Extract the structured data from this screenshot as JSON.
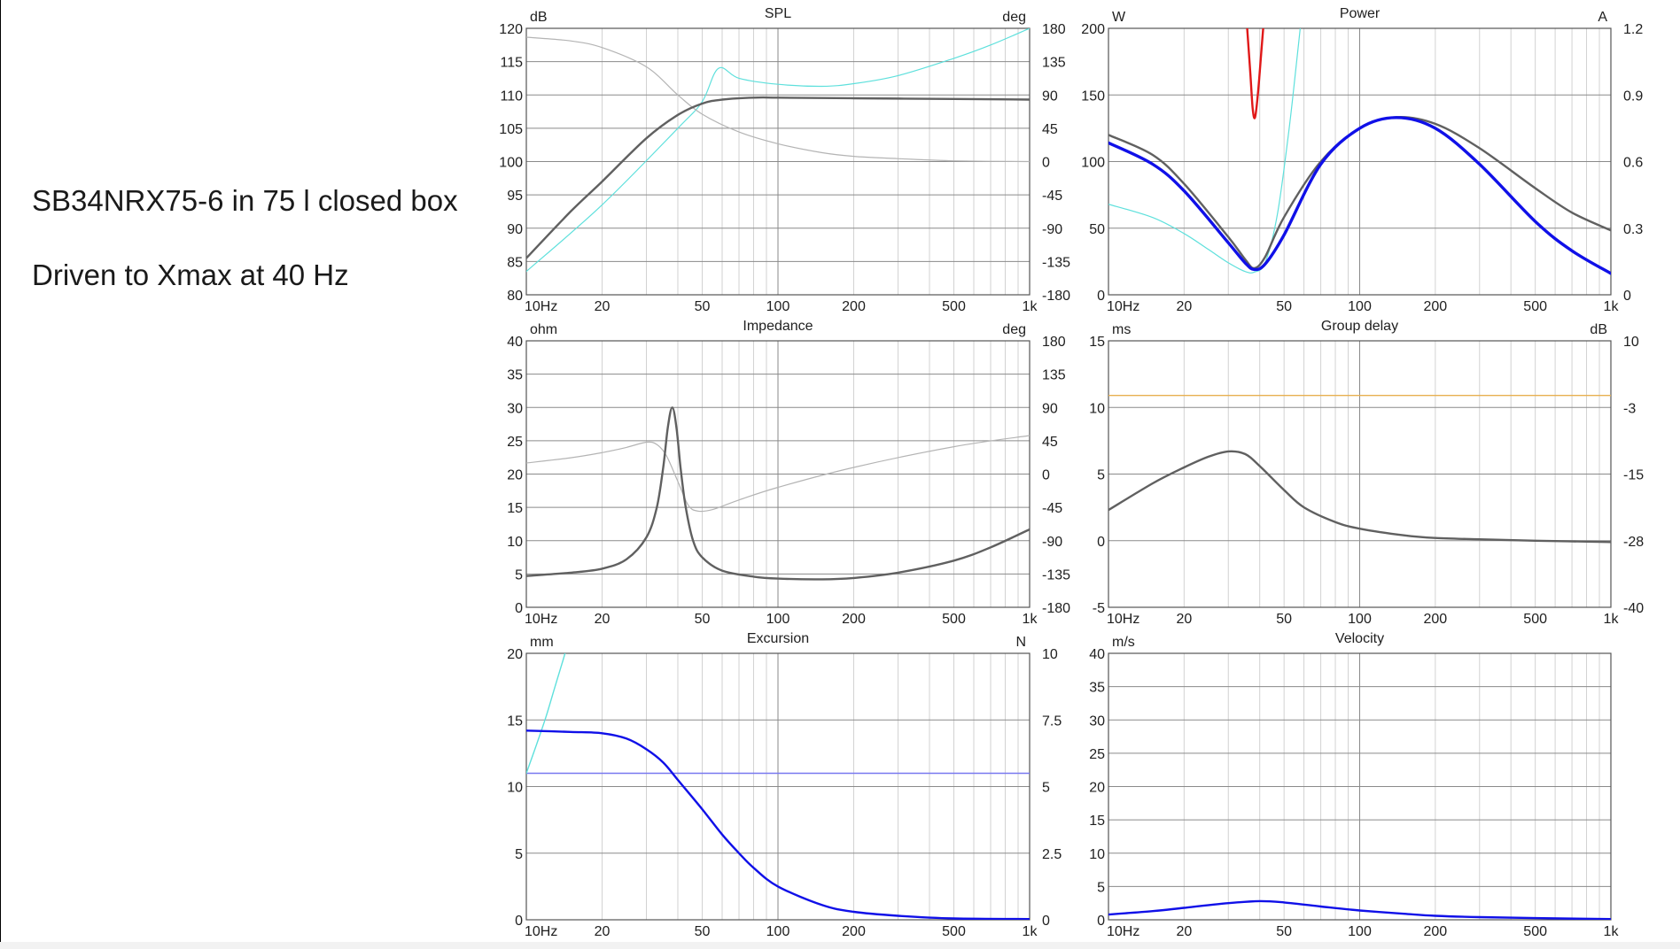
{
  "slide": {
    "caption1": "SB34NRX75-6 in 75 l closed box",
    "caption2": "Driven to Xmax at 40 Hz"
  },
  "colors": {
    "grid_major": "#8a8a8a",
    "grid_minor": "#d2d2d2",
    "dark_gray": "#606060",
    "light_gray": "#b4b4b4",
    "cyan": "#5ee0dc",
    "blue": "#1010e8",
    "red": "#e01818",
    "purple": "#7878f0",
    "orange": "#e8b050"
  },
  "chart_data": [
    {
      "id": "spl",
      "type": "line",
      "title": "SPL",
      "xscale": "log",
      "xlim": [
        10,
        1000
      ],
      "x_ticks": [
        "10Hz",
        "20",
        "50",
        "100",
        "200",
        "500",
        "1k"
      ],
      "ylabel": "dB",
      "ylim": [
        80,
        120
      ],
      "y_ticks": [
        "80",
        "85",
        "90",
        "95",
        "100",
        "105",
        "110",
        "115",
        "120"
      ],
      "y2label": "deg",
      "y2lim": [
        -180,
        180
      ],
      "y2_ticks": [
        "-180",
        "-135",
        "-90",
        "-45",
        "0",
        "45",
        "90",
        "135",
        "180"
      ],
      "grid": true,
      "series": [
        {
          "color": "cyan",
          "width": 1.2,
          "axis": "y",
          "points": [
            [
              10,
              83.5
            ],
            [
              20,
              93.5
            ],
            [
              40,
              105
            ],
            [
              50,
              109
            ],
            [
              58,
              114
            ],
            [
              70,
              112.5
            ],
            [
              100,
              111.6
            ],
            [
              150,
              111.3
            ],
            [
              200,
              111.7
            ],
            [
              300,
              112.9
            ],
            [
              500,
              115.5
            ],
            [
              700,
              117.5
            ],
            [
              1000,
              120
            ]
          ]
        },
        {
          "color": "light_gray",
          "width": 1.2,
          "axis": "y2",
          "points": [
            [
              10,
              168
            ],
            [
              15,
              163
            ],
            [
              20,
              154
            ],
            [
              30,
              128
            ],
            [
              40,
              90
            ],
            [
              50,
              64
            ],
            [
              70,
              40
            ],
            [
              100,
              24
            ],
            [
              150,
              12
            ],
            [
              200,
              7
            ],
            [
              300,
              4
            ],
            [
              500,
              1
            ],
            [
              1000,
              0
            ]
          ]
        },
        {
          "color": "dark_gray",
          "width": 2.4,
          "axis": "y",
          "points": [
            [
              10,
              85.5
            ],
            [
              15,
              92.5
            ],
            [
              20,
              97
            ],
            [
              30,
              103.5
            ],
            [
              40,
              107
            ],
            [
              50,
              108.7
            ],
            [
              60,
              109.3
            ],
            [
              80,
              109.6
            ],
            [
              100,
              109.6
            ],
            [
              200,
              109.5
            ],
            [
              500,
              109.4
            ],
            [
              1000,
              109.3
            ]
          ]
        }
      ]
    },
    {
      "id": "power",
      "type": "line",
      "title": "Power",
      "xscale": "log",
      "xlim": [
        10,
        1000
      ],
      "x_ticks": [
        "10Hz",
        "20",
        "50",
        "100",
        "200",
        "500",
        "1k"
      ],
      "ylabel": "W",
      "ylim": [
        0,
        200
      ],
      "y_ticks": [
        "0",
        "50",
        "100",
        "150",
        "200"
      ],
      "y2label": "A",
      "y2lim": [
        0,
        1.2
      ],
      "y2_ticks": [
        "0",
        "0.3",
        "0.6",
        "0.9",
        "1.2"
      ],
      "grid": true,
      "series": [
        {
          "color": "red",
          "width": 2.4,
          "axis": "y",
          "points": [
            [
              35.5,
              205
            ],
            [
              36.6,
              170
            ],
            [
              37.5,
              140
            ],
            [
              38.3,
              133
            ],
            [
              39.3,
              150
            ],
            [
              40.5,
              180
            ],
            [
              41.5,
              205
            ]
          ]
        },
        {
          "color": "cyan",
          "width": 1.2,
          "axis": "y",
          "points": [
            [
              10,
              68
            ],
            [
              15,
              58
            ],
            [
              20,
              46
            ],
            [
              25,
              34
            ],
            [
              30,
              24
            ],
            [
              35,
              17.5
            ],
            [
              38,
              17
            ],
            [
              42,
              24
            ],
            [
              47,
              60
            ],
            [
              52,
              120
            ],
            [
              55,
              160
            ],
            [
              58,
              200
            ]
          ]
        },
        {
          "color": "dark_gray",
          "width": 2.4,
          "axis": "y2",
          "points": [
            [
              10,
              0.72
            ],
            [
              15,
              0.63
            ],
            [
              20,
              0.5
            ],
            [
              30,
              0.26
            ],
            [
              35,
              0.16
            ],
            [
              38,
              0.12
            ],
            [
              42,
              0.17
            ],
            [
              50,
              0.35
            ],
            [
              70,
              0.6
            ],
            [
              100,
              0.75
            ],
            [
              140,
              0.8
            ],
            [
              200,
              0.77
            ],
            [
              300,
              0.66
            ],
            [
              500,
              0.48
            ],
            [
              700,
              0.37
            ],
            [
              1000,
              0.29
            ]
          ]
        },
        {
          "color": "blue",
          "width": 3.4,
          "axis": "y",
          "points": [
            [
              10,
              114
            ],
            [
              15,
              98
            ],
            [
              20,
              78
            ],
            [
              30,
              39
            ],
            [
              35,
              24
            ],
            [
              38,
              19
            ],
            [
              42,
              23
            ],
            [
              50,
              45
            ],
            [
              70,
              98
            ],
            [
              100,
              125
            ],
            [
              140,
              133
            ],
            [
              200,
              125
            ],
            [
              300,
              98
            ],
            [
              500,
              55
            ],
            [
              700,
              33
            ],
            [
              1000,
              16
            ]
          ]
        }
      ]
    },
    {
      "id": "impedance",
      "type": "line",
      "title": "Impedance",
      "xscale": "log",
      "xlim": [
        10,
        1000
      ],
      "x_ticks": [
        "10Hz",
        "20",
        "50",
        "100",
        "200",
        "500",
        "1k"
      ],
      "ylabel": "ohm",
      "ylim": [
        0,
        40
      ],
      "y_ticks": [
        "0",
        "5",
        "10",
        "15",
        "20",
        "25",
        "30",
        "35",
        "40"
      ],
      "y2label": "deg",
      "y2lim": [
        -180,
        180
      ],
      "y2_ticks": [
        "-180",
        "-135",
        "-90",
        "-45",
        "0",
        "45",
        "90",
        "135",
        "180"
      ],
      "grid": true,
      "series": [
        {
          "color": "light_gray",
          "width": 1.2,
          "axis": "y2",
          "points": [
            [
              10,
              15
            ],
            [
              15,
              22
            ],
            [
              20,
              29
            ],
            [
              25,
              36
            ],
            [
              30,
              43
            ],
            [
              33,
              40
            ],
            [
              36,
              25
            ],
            [
              40,
              -10
            ],
            [
              44,
              -42
            ],
            [
              48,
              -50
            ],
            [
              55,
              -48
            ],
            [
              70,
              -35
            ],
            [
              100,
              -18
            ],
            [
              200,
              9
            ],
            [
              500,
              37
            ],
            [
              1000,
              52
            ]
          ]
        },
        {
          "color": "dark_gray",
          "width": 2.4,
          "axis": "y",
          "points": [
            [
              10,
              4.7
            ],
            [
              15,
              5.2
            ],
            [
              20,
              5.8
            ],
            [
              25,
              7.2
            ],
            [
              30,
              10.5
            ],
            [
              33,
              15
            ],
            [
              35,
              21
            ],
            [
              36.5,
              27
            ],
            [
              38,
              30
            ],
            [
              39.5,
              27
            ],
            [
              41,
              21
            ],
            [
              43,
              15
            ],
            [
              46,
              10
            ],
            [
              50,
              7.5
            ],
            [
              60,
              5.5
            ],
            [
              80,
              4.6
            ],
            [
              100,
              4.3
            ],
            [
              150,
              4.2
            ],
            [
              200,
              4.4
            ],
            [
              300,
              5.2
            ],
            [
              500,
              7
            ],
            [
              700,
              9
            ],
            [
              1000,
              11.7
            ]
          ]
        }
      ]
    },
    {
      "id": "group_delay",
      "type": "line",
      "title": "Group delay",
      "xscale": "log",
      "xlim": [
        10,
        1000
      ],
      "x_ticks": [
        "10Hz",
        "20",
        "50",
        "100",
        "200",
        "500",
        "1k"
      ],
      "ylabel": "ms",
      "ylim": [
        -5,
        15
      ],
      "y_ticks": [
        "-5",
        "0",
        "5",
        "10",
        "15"
      ],
      "y2label": "dB",
      "y2lim": [
        -40,
        10
      ],
      "y2_ticks": [
        "-40",
        "-28",
        "-15",
        "-3",
        "10"
      ],
      "grid": true,
      "series": [
        {
          "color": "orange",
          "width": 1.4,
          "axis": "y",
          "points": [
            [
              10,
              10.9
            ],
            [
              1000,
              10.9
            ]
          ]
        },
        {
          "color": "dark_gray",
          "width": 2.4,
          "axis": "y",
          "points": [
            [
              10,
              2.3
            ],
            [
              15,
              4.3
            ],
            [
              20,
              5.5
            ],
            [
              25,
              6.3
            ],
            [
              30,
              6.7
            ],
            [
              35,
              6.5
            ],
            [
              40,
              5.6
            ],
            [
              50,
              3.8
            ],
            [
              60,
              2.5
            ],
            [
              80,
              1.4
            ],
            [
              100,
              0.9
            ],
            [
              150,
              0.4
            ],
            [
              200,
              0.2
            ],
            [
              300,
              0.1
            ],
            [
              500,
              0.0
            ],
            [
              1000,
              -0.1
            ]
          ]
        }
      ]
    },
    {
      "id": "excursion",
      "type": "line",
      "title": "Excursion",
      "xscale": "log",
      "xlim": [
        10,
        1000
      ],
      "x_ticks": [
        "10Hz",
        "20",
        "50",
        "100",
        "200",
        "500",
        "1k"
      ],
      "ylabel": "mm",
      "ylim": [
        0,
        20
      ],
      "y_ticks": [
        "0",
        "5",
        "10",
        "15",
        "20"
      ],
      "y2label": "N",
      "y2lim": [
        0,
        10
      ],
      "y2_ticks": [
        "0",
        "2.5",
        "5",
        "7.5",
        "10"
      ],
      "grid": true,
      "series": [
        {
          "color": "purple",
          "width": 1.4,
          "axis": "y",
          "points": [
            [
              10,
              11
            ],
            [
              1000,
              11
            ]
          ]
        },
        {
          "color": "cyan",
          "width": 1.4,
          "axis": "y",
          "points": [
            [
              10,
              11
            ],
            [
              11,
              13.2
            ],
            [
              12,
              15.3
            ],
            [
              13,
              17.5
            ],
            [
              14,
              19.5
            ],
            [
              14.5,
              20.5
            ]
          ]
        },
        {
          "color": "blue",
          "width": 2.4,
          "axis": "y",
          "points": [
            [
              10,
              14.2
            ],
            [
              15,
              14.1
            ],
            [
              20,
              14.0
            ],
            [
              25,
              13.6
            ],
            [
              30,
              12.8
            ],
            [
              35,
              11.8
            ],
            [
              40,
              10.5
            ],
            [
              50,
              8.3
            ],
            [
              60,
              6.4
            ],
            [
              70,
              5.0
            ],
            [
              80,
              3.9
            ],
            [
              100,
              2.5
            ],
            [
              150,
              1.1
            ],
            [
              200,
              0.6
            ],
            [
              300,
              0.3
            ],
            [
              500,
              0.1
            ],
            [
              1000,
              0.05
            ]
          ]
        }
      ]
    },
    {
      "id": "velocity",
      "type": "line",
      "title": "Velocity",
      "xscale": "log",
      "xlim": [
        10,
        1000
      ],
      "x_ticks": [
        "10Hz",
        "20",
        "50",
        "100",
        "200",
        "500",
        "1k"
      ],
      "ylabel": "m/s",
      "ylim": [
        0,
        40
      ],
      "y_ticks": [
        "0",
        "5",
        "10",
        "15",
        "20",
        "25",
        "30",
        "35",
        "40"
      ],
      "grid": true,
      "series": [
        {
          "color": "blue",
          "width": 2.4,
          "axis": "y",
          "points": [
            [
              10,
              0.8
            ],
            [
              15,
              1.3
            ],
            [
              20,
              1.8
            ],
            [
              30,
              2.5
            ],
            [
              40,
              2.8
            ],
            [
              50,
              2.6
            ],
            [
              70,
              2.0
            ],
            [
              100,
              1.4
            ],
            [
              150,
              0.9
            ],
            [
              200,
              0.6
            ],
            [
              300,
              0.4
            ],
            [
              500,
              0.25
            ],
            [
              1000,
              0.1
            ]
          ]
        }
      ]
    }
  ]
}
